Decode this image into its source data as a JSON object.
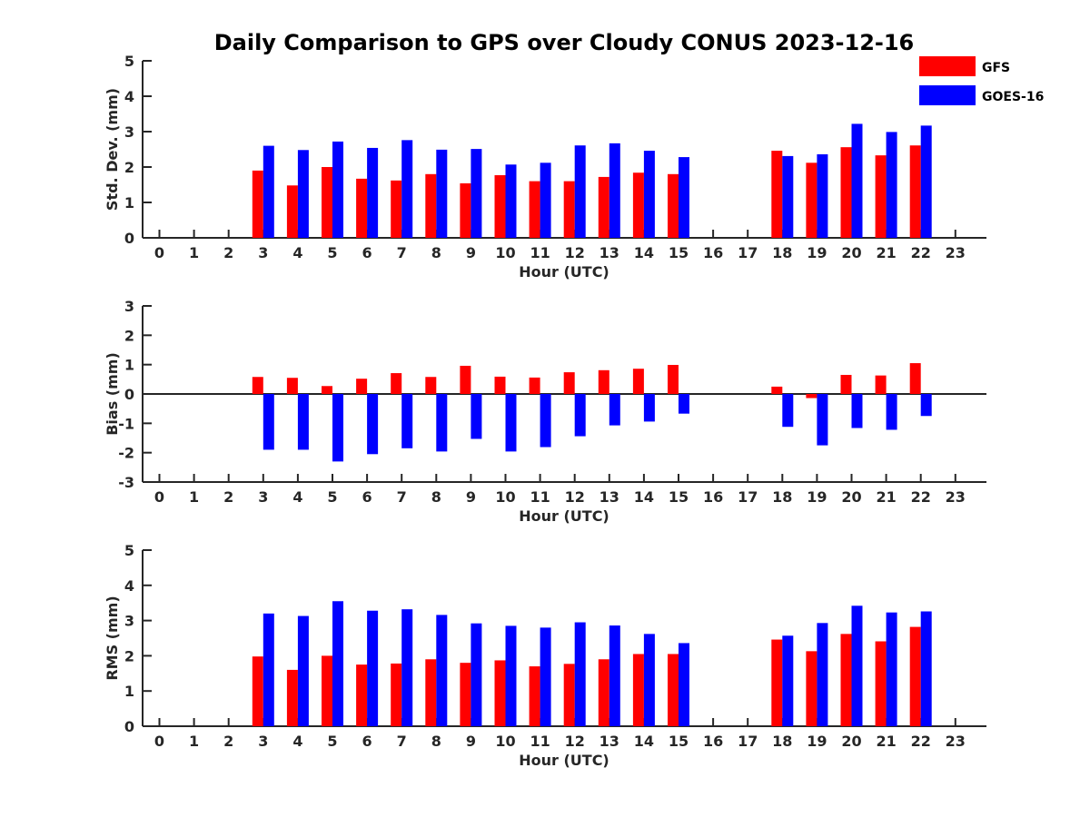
{
  "colors": {
    "GFS": "#ff0000",
    "GOES-16": "#0000ff",
    "axis": "#262626"
  },
  "legend": {
    "items": [
      "GFS",
      "GOES-16"
    ],
    "placement": "top-right"
  },
  "chart_data": {
    "title": "Daily Comparison to GPS over Cloudy CONUS 2023-12-16",
    "panels": [
      {
        "type": "bar",
        "ylabel": "Std. Dev. (mm)",
        "xlabel": "Hour (UTC)",
        "ylim": [
          0,
          5
        ],
        "yticks": [
          "0",
          "1",
          "2",
          "3",
          "4",
          "5"
        ],
        "categories": [
          "0",
          "1",
          "2",
          "3",
          "4",
          "5",
          "6",
          "7",
          "8",
          "9",
          "10",
          "11",
          "12",
          "13",
          "14",
          "15",
          "16",
          "17",
          "18",
          "19",
          "20",
          "21",
          "22",
          "23"
        ],
        "series": [
          {
            "name": "GFS",
            "values": [
              null,
              null,
              null,
              1.9,
              1.48,
              2.0,
              1.67,
              1.62,
              1.8,
              1.54,
              1.77,
              1.6,
              1.6,
              1.72,
              1.84,
              1.8,
              null,
              null,
              2.46,
              2.12,
              2.56,
              2.33,
              2.61,
              null
            ]
          },
          {
            "name": "GOES-16",
            "values": [
              null,
              null,
              null,
              2.6,
              2.48,
              2.72,
              2.54,
              2.76,
              2.49,
              2.51,
              2.07,
              2.12,
              2.61,
              2.67,
              2.46,
              2.28,
              null,
              null,
              2.31,
              2.36,
              3.22,
              2.99,
              3.17,
              null
            ]
          }
        ]
      },
      {
        "type": "bar",
        "ylabel": "Bias (mm)",
        "xlabel": "Hour (UTC)",
        "ylim": [
          -3,
          3
        ],
        "yticks": [
          "-3",
          "-2",
          "-1",
          "0",
          "1",
          "2",
          "3"
        ],
        "zero_line": true,
        "categories": [
          "0",
          "1",
          "2",
          "3",
          "4",
          "5",
          "6",
          "7",
          "8",
          "9",
          "10",
          "11",
          "12",
          "13",
          "14",
          "15",
          "16",
          "17",
          "18",
          "19",
          "20",
          "21",
          "22",
          "23"
        ],
        "series": [
          {
            "name": "GFS",
            "values": [
              null,
              null,
              null,
              0.58,
              0.55,
              0.27,
              0.52,
              0.71,
              0.58,
              0.96,
              0.59,
              0.56,
              0.74,
              0.81,
              0.86,
              0.99,
              null,
              null,
              0.25,
              -0.14,
              0.65,
              0.63,
              1.05,
              null
            ]
          },
          {
            "name": "GOES-16",
            "values": [
              null,
              null,
              null,
              -1.9,
              -1.9,
              -2.3,
              -2.05,
              -1.85,
              -1.96,
              -1.53,
              -1.96,
              -1.81,
              -1.44,
              -1.07,
              -0.94,
              -0.67,
              null,
              null,
              -1.12,
              -1.75,
              -1.16,
              -1.22,
              -0.75,
              null
            ]
          }
        ]
      },
      {
        "type": "bar",
        "ylabel": "RMS (mm)",
        "xlabel": "Hour (UTC)",
        "ylim": [
          0,
          5
        ],
        "yticks": [
          "0",
          "1",
          "2",
          "3",
          "4",
          "5"
        ],
        "categories": [
          "0",
          "1",
          "2",
          "3",
          "4",
          "5",
          "6",
          "7",
          "8",
          "9",
          "10",
          "11",
          "12",
          "13",
          "14",
          "15",
          "16",
          "17",
          "18",
          "19",
          "20",
          "21",
          "22",
          "23"
        ],
        "series": [
          {
            "name": "GFS",
            "values": [
              null,
              null,
              null,
              1.98,
              1.6,
              2.0,
              1.75,
              1.78,
              1.9,
              1.8,
              1.87,
              1.7,
              1.77,
              1.9,
              2.05,
              2.05,
              null,
              null,
              2.46,
              2.13,
              2.62,
              2.41,
              2.82,
              null
            ]
          },
          {
            "name": "GOES-16",
            "values": [
              null,
              null,
              null,
              3.2,
              3.13,
              3.55,
              3.28,
              3.32,
              3.16,
              2.92,
              2.85,
              2.8,
              2.95,
              2.86,
              2.62,
              2.36,
              null,
              null,
              2.57,
              2.93,
              3.42,
              3.23,
              3.26,
              null
            ]
          }
        ]
      }
    ]
  }
}
